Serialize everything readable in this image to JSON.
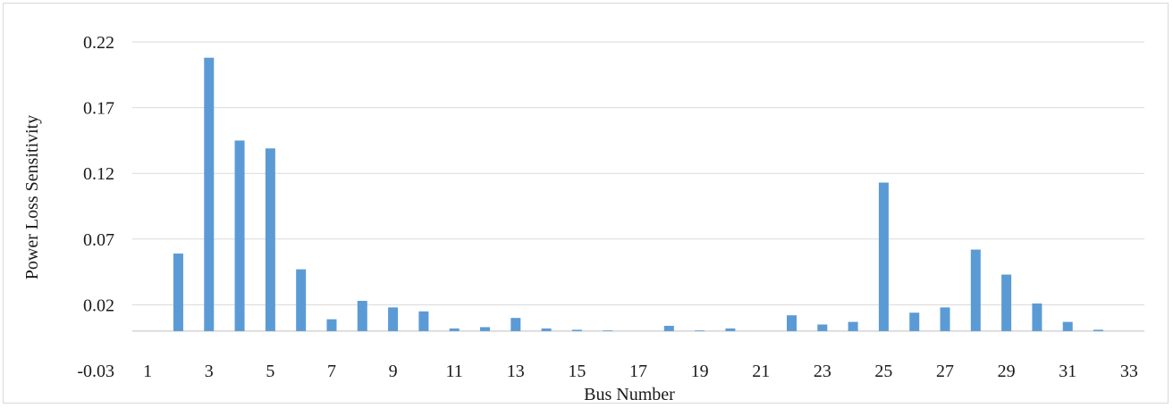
{
  "chart_data": {
    "type": "bar",
    "title": "",
    "xlabel": "Bus Number",
    "ylabel": "Power Loss Sensitivity",
    "ylim": [
      -0.03,
      0.22
    ],
    "y_ticks": [
      "-0.03",
      "0.02",
      "0.07",
      "0.12",
      "0.17",
      "0.22"
    ],
    "x_tick_labels": [
      "1",
      "3",
      "5",
      "7",
      "9",
      "11",
      "13",
      "15",
      "17",
      "19",
      "21",
      "23",
      "25",
      "27",
      "29",
      "31",
      "33"
    ],
    "categories": [
      "1",
      "2",
      "3",
      "4",
      "5",
      "6",
      "7",
      "8",
      "9",
      "10",
      "11",
      "12",
      "13",
      "14",
      "15",
      "16",
      "17",
      "18",
      "19",
      "20",
      "21",
      "22",
      "23",
      "24",
      "25",
      "26",
      "27",
      "28",
      "29",
      "30",
      "31",
      "32",
      "33"
    ],
    "values": [
      0,
      0.059,
      0.208,
      0.145,
      0.139,
      0.047,
      0.009,
      0.023,
      0.018,
      0.015,
      0.002,
      0.003,
      0.01,
      0.002,
      0.001,
      0.0005,
      0,
      0.004,
      0.0005,
      0.002,
      0,
      0.012,
      0.005,
      0.007,
      0.113,
      0.014,
      0.018,
      0.062,
      0.043,
      0.021,
      0.007,
      0.001,
      0
    ],
    "grid": true,
    "legend": "none",
    "bar_color": "#5b9bd5"
  }
}
